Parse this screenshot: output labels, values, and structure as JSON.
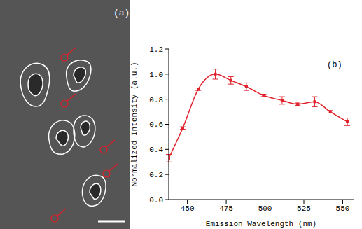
{
  "image_panel": {
    "label": "(a)"
  },
  "chart_data": {
    "type": "line",
    "annotations": [
      "(b)"
    ],
    "x_label": "Emission Wavelength (nm)",
    "y_label": "Normalized Intensity (a.u.)",
    "x": [
      438,
      447,
      457,
      468,
      478,
      488,
      499,
      511,
      521,
      532,
      542,
      553
    ],
    "series": [
      {
        "name": "Normalized Intensity",
        "color": "#e0202a",
        "marker": "square",
        "values": [
          0.33,
          0.57,
          0.88,
          1.0,
          0.95,
          0.9,
          0.83,
          0.79,
          0.76,
          0.78,
          0.7,
          0.62
        ],
        "errors": [
          0.03,
          0.01,
          0.01,
          0.04,
          0.03,
          0.03,
          0.01,
          0.03,
          0.01,
          0.04,
          0.01,
          0.03
        ]
      }
    ],
    "xlim": [
      438,
      557
    ],
    "xticks": [
      450,
      475,
      500,
      525,
      550
    ],
    "ylim": [
      0,
      1.2
    ],
    "yticks": [
      {
        "value": 0,
        "label": "0.0"
      },
      0.2,
      0.4,
      0.6,
      0.8,
      {
        "value": 1,
        "label": "1.0"
      },
      1.2
    ]
  }
}
